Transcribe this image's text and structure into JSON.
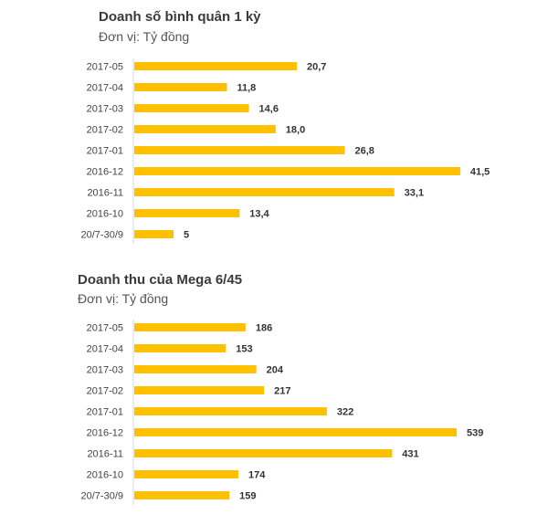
{
  "chart_data": [
    {
      "type": "bar",
      "orientation": "horizontal",
      "title": "Doanh số bình quân 1 kỳ",
      "subtitle": "Đơn vị: Tỷ đồng",
      "categories": [
        "2017-05",
        "2017-04",
        "2017-03",
        "2017-02",
        "2017-01",
        "2016-12",
        "2016-11",
        "2016-10",
        "20/7-30/9"
      ],
      "values": [
        20.7,
        11.8,
        14.6,
        18.0,
        26.8,
        41.5,
        33.1,
        13.4,
        5
      ],
      "value_labels": [
        "20,7",
        "11,8",
        "14,6",
        "18,0",
        "26,8",
        "41,5",
        "33,1",
        "13,4",
        "5"
      ],
      "bar_color": "#ffc000",
      "grid": false,
      "legend": "none"
    },
    {
      "type": "bar",
      "orientation": "horizontal",
      "title": "Doanh thu của Mega 6/45",
      "subtitle": "Đơn vị: Tỷ đồng",
      "categories": [
        "2017-05",
        "2017-04",
        "2017-03",
        "2017-02",
        "2017-01",
        "2016-12",
        "2016-11",
        "2016-10",
        "20/7-30/9"
      ],
      "values": [
        186,
        153,
        204,
        217,
        322,
        539,
        431,
        174,
        159
      ],
      "value_labels": [
        "186",
        "153",
        "204",
        "217",
        "322",
        "539",
        "431",
        "174",
        "159"
      ],
      "bar_color": "#ffc000",
      "grid": false,
      "legend": "none"
    }
  ]
}
